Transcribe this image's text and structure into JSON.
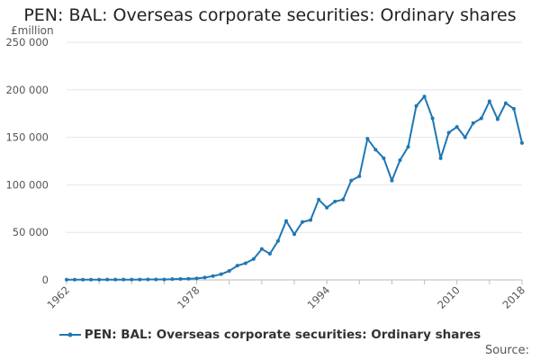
{
  "chart_data": {
    "type": "line",
    "title": "PEN: BAL: Overseas corporate securities: Ordinary shares",
    "unit_label": "£million",
    "y_ticks": [
      0,
      50000,
      100000,
      150000,
      200000,
      250000
    ],
    "y_tick_labels": [
      "0",
      "50 000",
      "100 000",
      "150 000",
      "200 000",
      "250 000"
    ],
    "ylim": [
      0,
      250000
    ],
    "xlim": [
      1962,
      2018
    ],
    "x_tick_labels": [
      "1962",
      "1978",
      "1994",
      "2010",
      "2018"
    ],
    "grid": "horizontal",
    "legend_position": "bottom",
    "series": [
      {
        "name": "PEN: BAL: Overseas corporate securities: Ordinary shares",
        "color": "#1f77b4",
        "x": [
          1962,
          1963,
          1964,
          1965,
          1966,
          1967,
          1968,
          1969,
          1970,
          1971,
          1972,
          1973,
          1974,
          1975,
          1976,
          1977,
          1978,
          1979,
          1980,
          1981,
          1982,
          1983,
          1984,
          1985,
          1986,
          1987,
          1988,
          1989,
          1990,
          1991,
          1992,
          1993,
          1994,
          1995,
          1996,
          1997,
          1998,
          1999,
          2000,
          2001,
          2002,
          2003,
          2004,
          2005,
          2006,
          2007,
          2008,
          2009,
          2010,
          2011,
          2012,
          2013,
          2014,
          2015,
          2016,
          2017,
          2018
        ],
        "values": [
          200,
          200,
          200,
          200,
          200,
          300,
          300,
          300,
          300,
          400,
          500,
          500,
          500,
          800,
          1000,
          1200,
          1500,
          2500,
          4000,
          6000,
          9500,
          15000,
          17500,
          22000,
          32500,
          27500,
          41000,
          62000,
          48000,
          61000,
          63000,
          84500,
          76000,
          82500,
          84500,
          104500,
          109000,
          148500,
          137000,
          128000,
          104500,
          126000,
          140000,
          183000,
          193000,
          170000,
          128000,
          155000,
          161000,
          150000,
          165000,
          170000,
          188000,
          169000,
          186000,
          180000,
          144000
        ]
      }
    ]
  },
  "source_label": "Source:"
}
